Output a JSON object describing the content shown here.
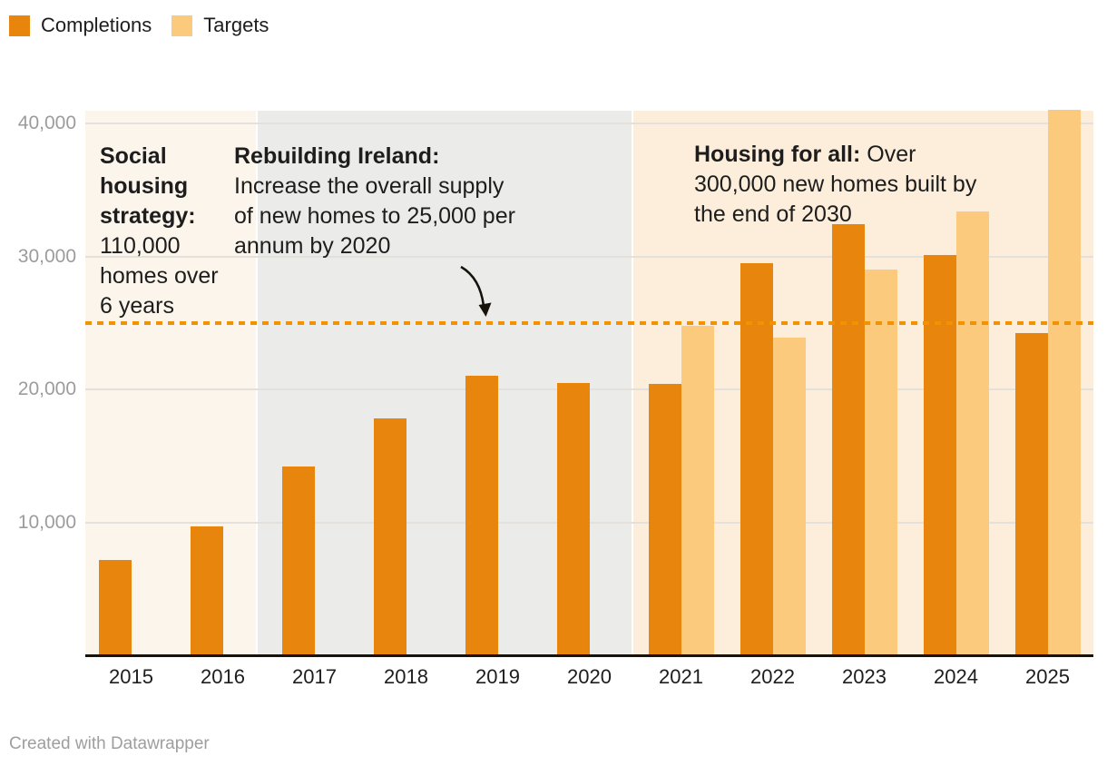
{
  "legend": {
    "items": [
      {
        "label": "Completions",
        "color": "#e8850c"
      },
      {
        "label": "Targets",
        "color": "#fbca7d"
      }
    ]
  },
  "annotations": {
    "social": {
      "bold": "Social\nhousing\nstrategy:",
      "rest": "\n110,000\nhomes over\n6 years"
    },
    "rebuilding": {
      "bold": "Rebuilding Ireland:",
      "rest": "\nIncrease the overall supply\nof new homes to 25,000 per\nannum by 2020"
    },
    "housing_for_all": {
      "bold": "Housing for all:",
      "rest": " Over\n300,000 new homes built by\nthe end of 2030"
    }
  },
  "footer": {
    "credit": "Created with Datawrapper"
  },
  "chart_data": {
    "type": "bar",
    "title": "",
    "xlabel": "",
    "ylabel": "",
    "categories": [
      "2015",
      "2016",
      "2017",
      "2018",
      "2019",
      "2020",
      "2021",
      "2022",
      "2023",
      "2024",
      "2025"
    ],
    "series": [
      {
        "name": "Completions",
        "color": "#e8850c",
        "values": [
          7200,
          9700,
          14200,
          17800,
          21000,
          20500,
          20400,
          29500,
          32400,
          30100,
          24200
        ]
      },
      {
        "name": "Targets",
        "color": "#fbca7d",
        "values": [
          null,
          null,
          null,
          null,
          null,
          null,
          24800,
          23900,
          29000,
          33400,
          41000
        ]
      }
    ],
    "ylim": [
      0,
      41500
    ],
    "yticks": [
      10000,
      20000,
      30000,
      40000
    ],
    "ytick_labels": [
      "10,000",
      "20,000",
      "30,000",
      "40,000"
    ],
    "grid": "on",
    "legend_position": "top-left",
    "reference_line": {
      "value": 25000,
      "style": "dotted",
      "color": "#f39200"
    },
    "regions": [
      {
        "label": "social-housing-strategy",
        "start": "2015",
        "end": "2016",
        "color": "#fcf5eb"
      },
      {
        "label": "rebuilding-ireland",
        "start": "2017",
        "end": "2020",
        "color": "#ebebe9"
      },
      {
        "label": "housing-for-all",
        "start": "2021",
        "end": "2025",
        "color": "#fceedb"
      }
    ]
  }
}
